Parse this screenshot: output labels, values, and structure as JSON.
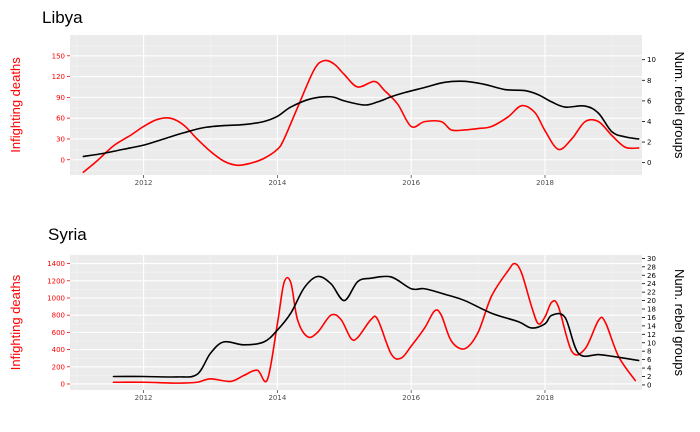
{
  "colors": {
    "panel_bg": "#ebebeb",
    "grid_major": "#ffffff",
    "grid_minor": "#f4f4f4",
    "deaths_line": "#ff0000",
    "groups_line": "#000000",
    "left_axis_text": "#ff0000",
    "right_axis_text": "#000000",
    "x_axis_text": "#4d4d4d"
  },
  "chart_data": [
    {
      "type": "line",
      "title": "Libya",
      "ylabel_left": "Infighting deaths",
      "ylabel_right": "Num. rebel groups",
      "xlim": [
        2010.9,
        2019.45
      ],
      "ylim_left": [
        -22,
        180
      ],
      "ylim_right": [
        -1.2,
        12.4
      ],
      "x_ticks": [
        2012,
        2014,
        2016,
        2018
      ],
      "x_tick_labels": [
        "2012",
        "2014",
        "2016",
        "2018"
      ],
      "left_ticks": [
        0,
        30,
        60,
        90,
        120,
        150
      ],
      "left_tick_labels": [
        "0",
        "30",
        "60",
        "90",
        "120",
        "150"
      ],
      "right_ticks": [
        0,
        2,
        4,
        6,
        8,
        10
      ],
      "right_tick_labels": [
        "0",
        "2",
        "4",
        "6",
        "8",
        "10"
      ],
      "series": [
        {
          "name": "Infighting deaths",
          "axis": "left",
          "x": [
            2011.1,
            2011.3,
            2011.55,
            2011.8,
            2012.0,
            2012.2,
            2012.4,
            2012.6,
            2012.8,
            2013.0,
            2013.2,
            2013.4,
            2013.6,
            2013.8,
            2014.0,
            2014.1,
            2014.3,
            2014.55,
            2014.7,
            2014.85,
            2015.0,
            2015.2,
            2015.45,
            2015.6,
            2015.8,
            2016.0,
            2016.2,
            2016.45,
            2016.6,
            2016.8,
            2017.0,
            2017.2,
            2017.45,
            2017.65,
            2017.85,
            2018.0,
            2018.2,
            2018.4,
            2018.6,
            2018.8,
            2019.0,
            2019.2,
            2019.4
          ],
          "y": [
            -18,
            -2,
            20,
            35,
            48,
            58,
            60,
            50,
            30,
            12,
            -2,
            -8,
            -5,
            2,
            15,
            30,
            75,
            130,
            143,
            138,
            123,
            105,
            113,
            100,
            80,
            48,
            55,
            55,
            43,
            43,
            45,
            48,
            62,
            78,
            68,
            42,
            15,
            30,
            55,
            55,
            35,
            18,
            17
          ]
        },
        {
          "name": "Num. rebel groups",
          "axis": "right",
          "x": [
            2011.1,
            2011.4,
            2011.7,
            2012.0,
            2012.3,
            2012.6,
            2012.9,
            2013.2,
            2013.5,
            2013.8,
            2014.0,
            2014.2,
            2014.5,
            2014.8,
            2015.0,
            2015.3,
            2015.5,
            2015.7,
            2015.9,
            2016.2,
            2016.5,
            2016.8,
            2017.1,
            2017.4,
            2017.7,
            2017.9,
            2018.1,
            2018.3,
            2018.6,
            2018.8,
            2019.0,
            2019.2,
            2019.4
          ],
          "y": [
            0.6,
            0.9,
            1.3,
            1.7,
            2.3,
            2.9,
            3.4,
            3.6,
            3.7,
            4.0,
            4.5,
            5.4,
            6.2,
            6.4,
            6.0,
            5.6,
            5.9,
            6.4,
            6.8,
            7.3,
            7.8,
            7.9,
            7.6,
            7.1,
            7.0,
            6.6,
            5.9,
            5.4,
            5.5,
            4.8,
            3.0,
            2.5,
            2.3
          ]
        }
      ]
    },
    {
      "type": "line",
      "title": "Syria",
      "ylabel_left": "Infighting deaths",
      "ylabel_right": "Num. rebel groups",
      "xlim": [
        2010.9,
        2019.45
      ],
      "ylim_left": [
        -70,
        1500
      ],
      "ylim_right": [
        -1.2,
        30.8
      ],
      "x_ticks": [
        2012,
        2014,
        2016,
        2018
      ],
      "x_tick_labels": [
        "2012",
        "2014",
        "2016",
        "2018"
      ],
      "left_ticks": [
        0,
        200,
        400,
        600,
        800,
        1000,
        1200,
        1400
      ],
      "left_tick_labels": [
        "0",
        "200",
        "400",
        "600",
        "800",
        "1000",
        "1200",
        "1400"
      ],
      "right_ticks": [
        0,
        2,
        4,
        6,
        8,
        10,
        12,
        14,
        16,
        18,
        20,
        22,
        24,
        26,
        28,
        30
      ],
      "right_tick_labels": [
        "0",
        "2",
        "4",
        "6",
        "8",
        "10",
        "12",
        "14",
        "16",
        "18",
        "20",
        "22",
        "24",
        "26",
        "28",
        "30"
      ],
      "series": [
        {
          "name": "Infighting deaths",
          "axis": "left",
          "x": [
            2011.55,
            2012.0,
            2012.5,
            2012.8,
            2013.0,
            2013.3,
            2013.5,
            2013.7,
            2013.85,
            2014.0,
            2014.1,
            2014.2,
            2014.3,
            2014.45,
            2014.6,
            2014.8,
            2014.95,
            2015.1,
            2015.2,
            2015.4,
            2015.5,
            2015.7,
            2015.85,
            2016.0,
            2016.2,
            2016.35,
            2016.45,
            2016.6,
            2016.8,
            2017.0,
            2017.2,
            2017.45,
            2017.55,
            2017.65,
            2017.8,
            2017.9,
            2018.0,
            2018.1,
            2018.2,
            2018.4,
            2018.6,
            2018.8,
            2018.9,
            2019.1,
            2019.35
          ],
          "y": [
            20,
            20,
            10,
            20,
            60,
            30,
            100,
            160,
            50,
            700,
            1180,
            1180,
            750,
            550,
            600,
            800,
            750,
            530,
            540,
            750,
            750,
            350,
            300,
            440,
            650,
            850,
            800,
            500,
            410,
            600,
            1020,
            1320,
            1400,
            1290,
            900,
            700,
            780,
            950,
            900,
            380,
            410,
            740,
            720,
            320,
            40
          ]
        },
        {
          "name": "Num. rebel groups",
          "axis": "right",
          "x": [
            2011.55,
            2012.0,
            2012.5,
            2012.8,
            2013.0,
            2013.2,
            2013.5,
            2013.8,
            2014.0,
            2014.2,
            2014.4,
            2014.6,
            2014.8,
            2015.0,
            2015.2,
            2015.4,
            2015.7,
            2016.0,
            2016.2,
            2016.5,
            2016.8,
            2017.2,
            2017.6,
            2017.8,
            2018.0,
            2018.1,
            2018.3,
            2018.5,
            2018.8,
            2019.0,
            2019.4
          ],
          "y": [
            2.0,
            2.0,
            1.9,
            2.5,
            7.5,
            10.2,
            9.5,
            10.2,
            13.0,
            17.0,
            23.0,
            25.7,
            24.0,
            20.0,
            24.5,
            25.3,
            25.6,
            22.8,
            22.8,
            21.5,
            20.0,
            17.0,
            15.0,
            13.5,
            14.5,
            16.5,
            16.0,
            7.5,
            7.2,
            6.8,
            5.8
          ]
        }
      ]
    }
  ]
}
